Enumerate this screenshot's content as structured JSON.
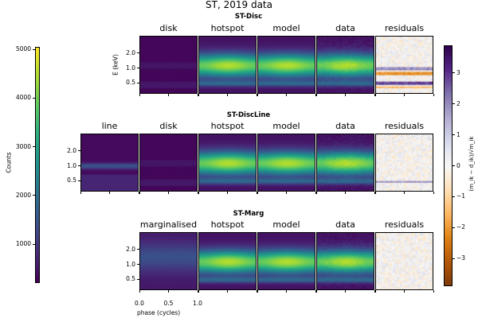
{
  "chart_data": {
    "type": "heatmap",
    "title": "ST, 2019 data",
    "colorbars": {
      "counts": {
        "label": "Counts",
        "ticks": [
          "1000",
          "2000",
          "3000",
          "4000",
          "5000"
        ],
        "tick_values": [
          1000,
          2000,
          3000,
          4000,
          5000
        ],
        "range": [
          200,
          5050
        ],
        "colormap": "viridis"
      },
      "residuals": {
        "label": "(m_ik − d_ik)/√m_ik",
        "ticks": [
          "3",
          "2",
          "1",
          "0",
          "−1",
          "−2",
          "−3"
        ],
        "tick_values": [
          3,
          2,
          1,
          0,
          -1,
          -2,
          -3
        ],
        "range": [
          -3.9,
          3.9
        ],
        "colormap": "PuOr"
      }
    },
    "rows": [
      {
        "title": "ST-Disc",
        "panels": [
          "disk",
          "hotspot",
          "model",
          "data",
          "residuals"
        ],
        "ylabel": "E (keV)",
        "yticks": [
          "2.0",
          "1.0",
          "0.5"
        ]
      },
      {
        "title": "ST-DiscLine",
        "panels": [
          "line",
          "disk",
          "hotspot",
          "model",
          "data",
          "residuals"
        ],
        "ylabel": "",
        "yticks": [
          "2.0",
          "1.0",
          "0.5"
        ]
      },
      {
        "title": "ST-Marg",
        "panels": [
          "marginalised",
          "hotspot",
          "model",
          "data",
          "residuals"
        ],
        "ylabel": "",
        "yticks": [
          "2.0",
          "1.0",
          "0.5"
        ]
      }
    ],
    "x": {
      "label": "phase (cycles)",
      "ticks": [
        "0.0",
        "0.5",
        "1.0"
      ],
      "range": [
        0,
        1
      ]
    },
    "y_scale": "log",
    "y_range_keV": [
      0.3,
      4.5
    ]
  }
}
